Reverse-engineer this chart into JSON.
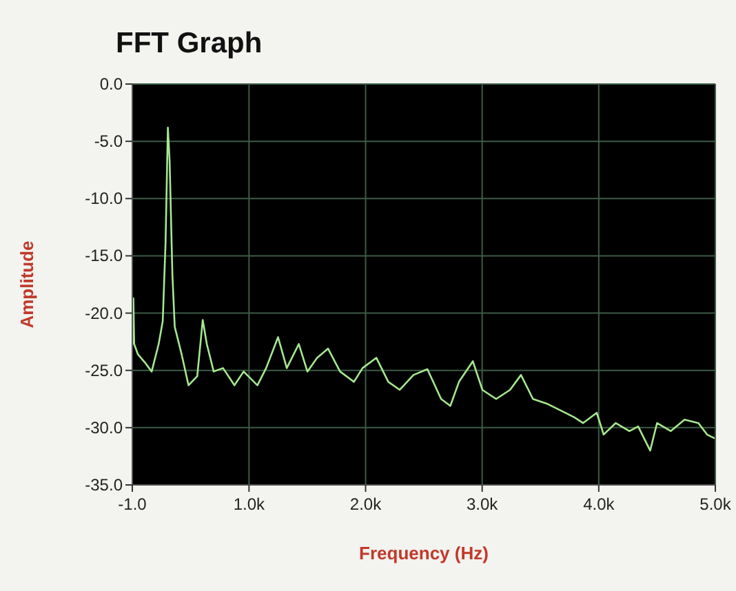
{
  "chart_data": {
    "type": "line",
    "title": "FFT Graph",
    "xlabel": "Frequency (Hz)",
    "ylabel": "Amplitude",
    "xlim": [
      -1,
      5000
    ],
    "xticks": [
      {
        "value": -1,
        "label": "-1.0"
      },
      {
        "value": 1000,
        "label": "1.0k"
      },
      {
        "value": 2000,
        "label": "2.0k"
      },
      {
        "value": 3000,
        "label": "3.0k"
      },
      {
        "value": 4000,
        "label": "4.0k"
      },
      {
        "value": 5000,
        "label": "5.0k"
      }
    ],
    "ylim": [
      -35,
      0
    ],
    "yticks": [
      {
        "value": 0,
        "label": "0.0"
      },
      {
        "value": -5,
        "label": "-5.0"
      },
      {
        "value": -10,
        "label": "-10.0"
      },
      {
        "value": -15,
        "label": "-15.0"
      },
      {
        "value": -20,
        "label": "-20.0"
      },
      {
        "value": -25,
        "label": "-25.0"
      },
      {
        "value": -30,
        "label": "-30.0"
      },
      {
        "value": -35,
        "label": "-35.0"
      }
    ],
    "grid": true,
    "marker": "none",
    "line_style": "solid",
    "series": [
      {
        "color": "#a6e890",
        "x": [
          0,
          8,
          15,
          47,
          106,
          165,
          225,
          260,
          284,
          304,
          319,
          343,
          363,
          422,
          481,
          556,
          603,
          638,
          697,
          777,
          875,
          954,
          1072,
          1147,
          1249,
          1324,
          1427,
          1501,
          1584,
          1678,
          1781,
          1900,
          1974,
          2092,
          2195,
          2293,
          2411,
          2530,
          2648,
          2727,
          2801,
          2920,
          3002,
          3120,
          3239,
          3333,
          3436,
          3554,
          3673,
          3791,
          3865,
          3983,
          4042,
          4145,
          4263,
          4338,
          4441,
          4500,
          4618,
          4736,
          4855,
          4929,
          4988
        ],
        "values": [
          -22.7,
          -18.7,
          -22.7,
          -23.6,
          -24.3,
          -25.1,
          -22.7,
          -20.7,
          -13.9,
          -3.8,
          -6.7,
          -16.7,
          -21.2,
          -23.6,
          -26.3,
          -25.5,
          -20.6,
          -22.7,
          -25.1,
          -24.8,
          -26.3,
          -25.1,
          -26.3,
          -24.8,
          -22.1,
          -24.8,
          -22.7,
          -25.1,
          -23.9,
          -23.1,
          -25.1,
          -26.0,
          -24.8,
          -23.9,
          -26.0,
          -26.7,
          -25.4,
          -24.9,
          -27.5,
          -28.1,
          -26.0,
          -24.2,
          -26.7,
          -27.5,
          -26.7,
          -25.4,
          -27.5,
          -27.9,
          -28.5,
          -29.1,
          -29.6,
          -28.7,
          -30.6,
          -29.6,
          -30.3,
          -29.9,
          -32.0,
          -29.6,
          -30.3,
          -29.3,
          -29.6,
          -30.6,
          -30.9
        ]
      }
    ]
  }
}
